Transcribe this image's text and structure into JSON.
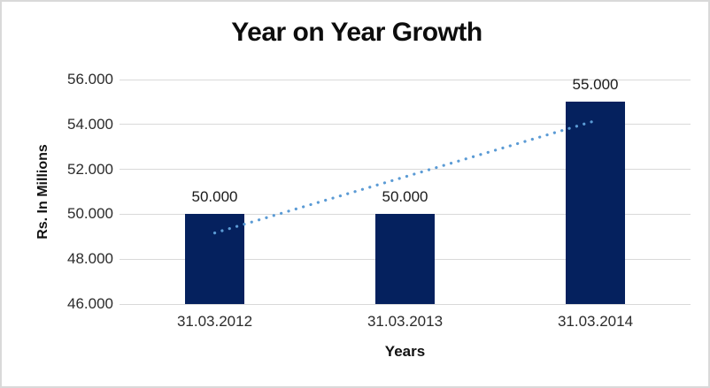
{
  "chart_data": {
    "type": "bar",
    "title": "Year on Year Growth",
    "xlabel": "Years",
    "ylabel": "Rs. In Millions",
    "categories": [
      "31.03.2012",
      "31.03.2013",
      "31.03.2014"
    ],
    "values": [
      50,
      50,
      55
    ],
    "value_labels": [
      "50.000",
      "50.000",
      "55.000"
    ],
    "ylim": [
      46,
      56
    ],
    "yticks": [
      {
        "value": 46,
        "label": "46.000"
      },
      {
        "value": 48,
        "label": "48.000"
      },
      {
        "value": 50,
        "label": "50.000"
      },
      {
        "value": 52,
        "label": "52.000"
      },
      {
        "value": 54,
        "label": "54.000"
      },
      {
        "value": 56,
        "label": "56.000"
      }
    ],
    "grid": "horizontal",
    "legend": "none",
    "colors": {
      "bar": "#05215e",
      "gridline": "#d9d9d9",
      "trendline": "#5b9bd5",
      "title_text": "#0d0d0d",
      "tick_text": "#2b2b2b",
      "frame_border": "#d9d9d9"
    },
    "trendline": {
      "type": "linear",
      "style": "dotted",
      "start_value": 49.167,
      "end_value": 54.167
    }
  }
}
